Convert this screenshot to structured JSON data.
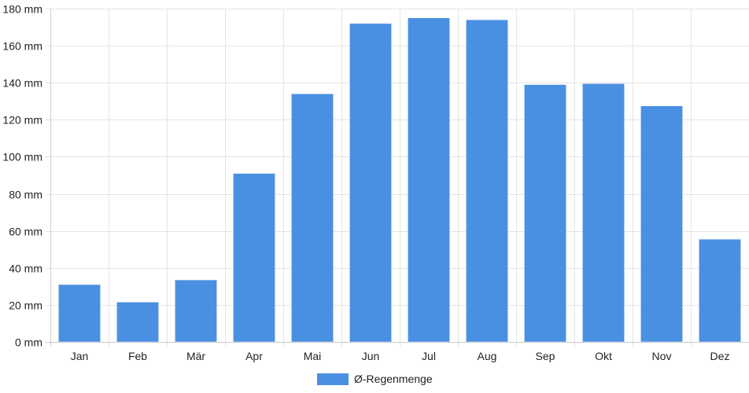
{
  "chart_data": {
    "type": "bar",
    "categories": [
      "Jan",
      "Feb",
      "Mär",
      "Apr",
      "Mai",
      "Jun",
      "Jul",
      "Aug",
      "Sep",
      "Okt",
      "Nov",
      "Dez"
    ],
    "series": [
      {
        "name": "Ø-Regenmenge",
        "values": [
          31,
          21.5,
          33.5,
          91,
          134,
          172,
          175,
          174,
          139,
          139.5,
          127.5,
          55.5
        ],
        "color": "#4a90e2"
      }
    ],
    "y_unit": "mm",
    "ylim": [
      0,
      180
    ],
    "yticks": [
      0,
      20,
      40,
      60,
      80,
      100,
      120,
      140,
      160,
      180
    ],
    "ytick_labels": [
      "0 mm",
      "20 mm",
      "40 mm",
      "60 mm",
      "80 mm",
      "100 mm",
      "120 mm",
      "140 mm",
      "160 mm",
      "180 mm"
    ],
    "grid": true,
    "legend_position": "bottom-center",
    "colors": {
      "bar": "#4a90e2",
      "grid": "#e4e4e4",
      "axis": "#cccccc",
      "text": "#222222"
    }
  }
}
